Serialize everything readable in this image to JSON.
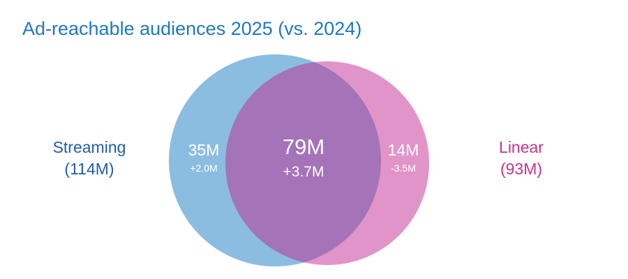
{
  "title": "Ad-reachable audiences 2025 (vs. 2024)",
  "sets": [
    {
      "name": "Streaming",
      "total": "(114M)",
      "only_value": "35M",
      "only_change": "+2.0M",
      "color": "#8bbde0",
      "label_color": "#1f5ea8"
    },
    {
      "name": "Linear",
      "total": "(93M)",
      "only_value": "14M",
      "only_change": "-3.5M",
      "color": "#e194c8",
      "label_color": "#c8348a"
    }
  ],
  "overlap": {
    "value": "79M",
    "change": "+3.7M",
    "color": "#a473b8"
  }
}
